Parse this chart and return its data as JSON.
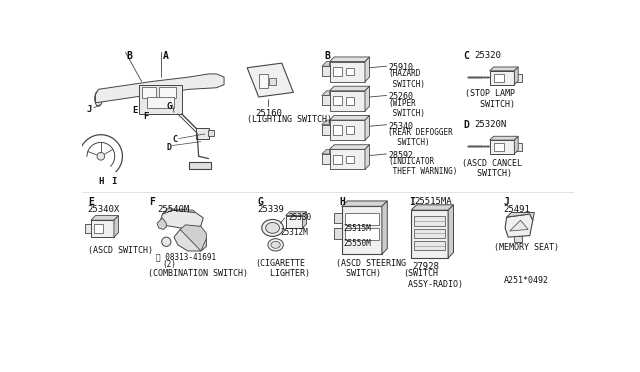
{
  "bg_color": "#ffffff",
  "line_color": "#444444",
  "text_color": "#111111",
  "fig_width": 6.4,
  "fig_height": 3.72,
  "dpi": 100,
  "parts": {
    "main_assembly": "25160",
    "hazard": "25910",
    "wiper": "25260",
    "rear_defogger": "25340",
    "indicator": "28592",
    "stop_lamp": "25320",
    "ascd_cancel": "25320N",
    "ascd_switch": "25340X",
    "combo_main": "25540M",
    "combo_sub": "08313-41691",
    "combo_qty": "(2)",
    "cig_a": "25339",
    "cig_b": "25330",
    "cig_c": "25312M",
    "ascd_steer_a": "25515M",
    "ascd_steer_b": "25550M",
    "radio_a": "25515MA",
    "radio_b": "27928",
    "memory": "25491",
    "diagram_id": "A251*0492"
  },
  "labels": {
    "lighting": "(LIGHTING SWITCH)",
    "hazard": "(HAZARD\n SWITCH)",
    "wiper": "(WIPER\n SWITCH)",
    "defogger": "(REAR DEFOGGER\n SWITCH)",
    "indicator": "(INDICATOR\n THEFT WARNING)",
    "stop_lamp": "(STOP LAMP\n  SWITCH)",
    "ascd_cancel": "(ASCD CANCEL\n  SWITCH)",
    "ascd": "(ASCD SWITCH)",
    "combo": "(COMBINATION SWITCH)",
    "cig": "(CIGARETTE\n   LIGHTER)",
    "ascd_steer": "(ASCD STEERING\n SWITCH)",
    "radio": "(SWITCH\n ASSY-RADIO)",
    "memory": "(MEMORY SEAT)"
  }
}
